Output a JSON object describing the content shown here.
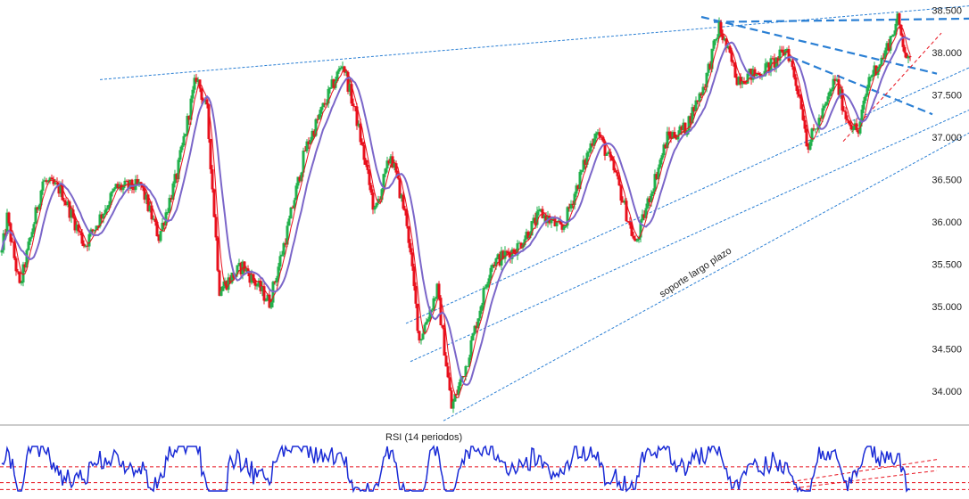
{
  "chart_data": [
    {
      "type": "candlestick",
      "title": "",
      "xlabel": "",
      "ylabel": "",
      "ylim": [
        33.6,
        38.62
      ],
      "y_ticks": [
        "38.500",
        "38.000",
        "37.500",
        "37.000",
        "36.500",
        "36.000",
        "35.500",
        "35.000",
        "34.500",
        "34.000"
      ],
      "y_tick_values": [
        38.5,
        38.0,
        37.5,
        37.0,
        36.5,
        36.0,
        35.5,
        35.0,
        34.5,
        34.0
      ],
      "grid": false,
      "colors": {
        "up": "#22b14c",
        "down": "#e8101c",
        "ma_fast": "#e8101c",
        "ma_slow": "#7b66c9",
        "trendline": "#2a7fd4"
      },
      "annotation": "soporte largo plazo",
      "price_path": [
        [
          0,
          35.5
        ],
        [
          8,
          36.05
        ],
        [
          22,
          35.22
        ],
        [
          48,
          36.48
        ],
        [
          68,
          36.38
        ],
        [
          95,
          35.72
        ],
        [
          130,
          36.4
        ],
        [
          158,
          36.42
        ],
        [
          178,
          35.82
        ],
        [
          198,
          36.55
        ],
        [
          220,
          37.72
        ],
        [
          232,
          37.3
        ],
        [
          246,
          35.2
        ],
        [
          272,
          35.48
        ],
        [
          302,
          35.05
        ],
        [
          322,
          35.9
        ],
        [
          342,
          36.85
        ],
        [
          364,
          37.4
        ],
        [
          384,
          37.88
        ],
        [
          400,
          37.2
        ],
        [
          420,
          36.1
        ],
        [
          438,
          36.8
        ],
        [
          456,
          36.0
        ],
        [
          470,
          34.6
        ],
        [
          490,
          35.2
        ],
        [
          506,
          33.8
        ],
        [
          522,
          34.3
        ],
        [
          550,
          35.5
        ],
        [
          580,
          35.7
        ],
        [
          606,
          36.1
        ],
        [
          630,
          35.9
        ],
        [
          668,
          37.1
        ],
        [
          690,
          36.55
        ],
        [
          712,
          35.72
        ],
        [
          728,
          36.3
        ],
        [
          748,
          37.0
        ],
        [
          768,
          37.1
        ],
        [
          790,
          37.65
        ],
        [
          806,
          38.3
        ],
        [
          826,
          37.7
        ],
        [
          850,
          37.75
        ],
        [
          870,
          37.9
        ],
        [
          882,
          38.05
        ],
        [
          898,
          37.4
        ],
        [
          905,
          36.9
        ],
        [
          925,
          37.35
        ],
        [
          936,
          37.7
        ],
        [
          948,
          37.25
        ],
        [
          962,
          37.05
        ],
        [
          974,
          37.7
        ],
        [
          990,
          37.95
        ],
        [
          1006,
          38.38
        ],
        [
          1018,
          37.88
        ]
      ],
      "trendlines": [
        {
          "style": "dotted-thin",
          "points": [
            [
              112,
              37.68
            ],
            [
              1086,
              38.55
            ]
          ]
        },
        {
          "style": "dotted-thin",
          "points": [
            [
              455,
              34.8
            ],
            [
              1086,
              37.82
            ]
          ]
        },
        {
          "style": "dotted-thin",
          "points": [
            [
              460,
              34.35
            ],
            [
              1086,
              37.32
            ]
          ]
        },
        {
          "style": "dotted-thin",
          "points": [
            [
              497,
              33.65
            ],
            [
              1086,
              37.05
            ]
          ]
        },
        {
          "style": "dashed-thick",
          "points": [
            [
              800,
              38.36
            ],
            [
              1086,
              38.4
            ]
          ]
        },
        {
          "style": "dashed-thick",
          "points": [
            [
              786,
              38.42
            ],
            [
              1050,
              37.75
            ]
          ]
        },
        {
          "style": "dashed-thick",
          "points": [
            [
              886,
              37.95
            ],
            [
              1045,
              37.27
            ]
          ]
        },
        {
          "style": "dashed-thin-red",
          "points": [
            [
              945,
              36.95
            ],
            [
              1055,
              38.23
            ]
          ]
        }
      ]
    },
    {
      "type": "line",
      "title": "RSI (14 periodos)",
      "levels": [
        {
          "style": "dashed-red",
          "points": [
            [
              0,
              0.46
            ],
            [
              1086,
              0.46
            ]
          ]
        },
        {
          "style": "dashed-red",
          "points": [
            [
              0,
              0.8
            ],
            [
              1086,
              0.8
            ]
          ]
        },
        {
          "style": "dashed-red",
          "points": [
            [
              0,
              0.95
            ],
            [
              1086,
              0.95
            ]
          ]
        },
        {
          "style": "dashed-red",
          "points": [
            [
              890,
              0.92
            ],
            [
              1050,
              0.54
            ]
          ]
        },
        {
          "style": "dashed-red",
          "points": [
            [
              880,
              0.8
            ],
            [
              1050,
              0.3
            ]
          ]
        }
      ]
    }
  ]
}
